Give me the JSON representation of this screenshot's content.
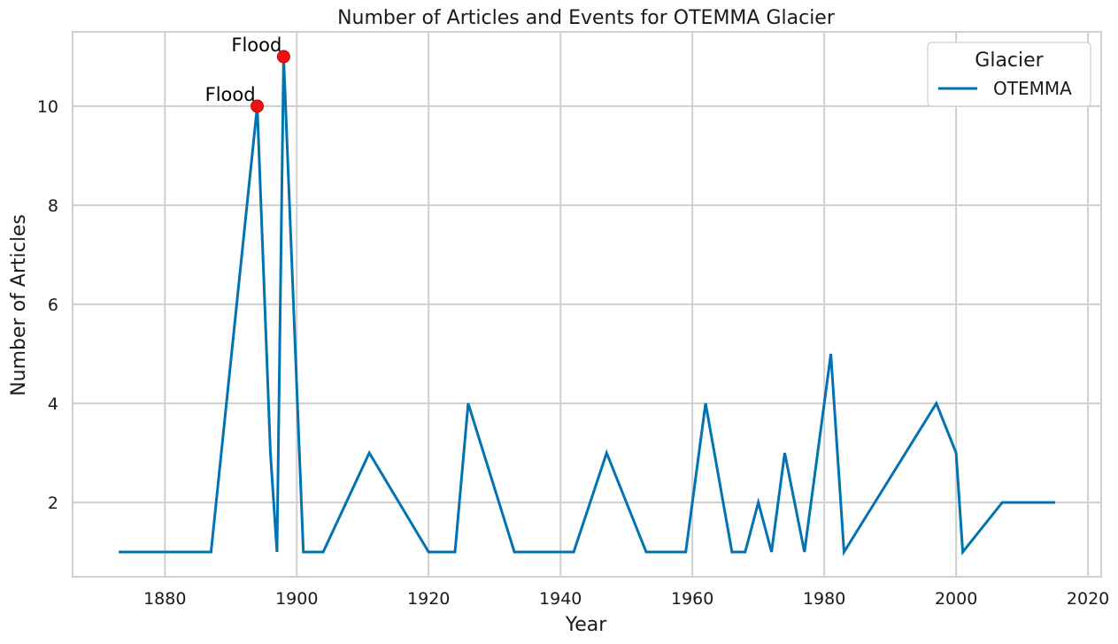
{
  "chart_data": {
    "type": "line",
    "title": "Number of Articles and Events for OTEMMA Glacier",
    "xlabel": "Year",
    "ylabel": "Number of Articles",
    "xlim": [
      1866,
      2022
    ],
    "ylim": [
      0.5,
      11.5
    ],
    "x_ticks": [
      1880,
      1900,
      1920,
      1940,
      1960,
      1980,
      2000,
      2020
    ],
    "y_ticks": [
      2,
      4,
      6,
      8,
      10
    ],
    "grid": true,
    "legend": {
      "title": "Glacier",
      "position": "top-right"
    },
    "series": [
      {
        "name": "OTEMMA",
        "color": "#0173b2",
        "x": [
          1873,
          1887,
          1894,
          1896,
          1897,
          1898,
          1901,
          1904,
          1911,
          1920,
          1924,
          1926,
          1933,
          1942,
          1947,
          1953,
          1959,
          1962,
          1966,
          1968,
          1970,
          1972,
          1974,
          1977,
          1981,
          1983,
          1997,
          2000,
          2001,
          2007,
          2015
        ],
        "y": [
          1,
          1,
          10,
          3,
          1,
          11,
          1,
          1,
          3,
          1,
          1,
          4,
          1,
          1,
          3,
          1,
          1,
          4,
          1,
          1,
          2,
          1,
          3,
          1,
          5,
          1,
          4,
          3,
          1,
          2,
          2
        ]
      }
    ],
    "events": [
      {
        "x": 1894,
        "y": 10,
        "label": "Flood",
        "color": "#ee1111"
      },
      {
        "x": 1898,
        "y": 11,
        "label": "Flood",
        "color": "#ee1111"
      }
    ]
  }
}
